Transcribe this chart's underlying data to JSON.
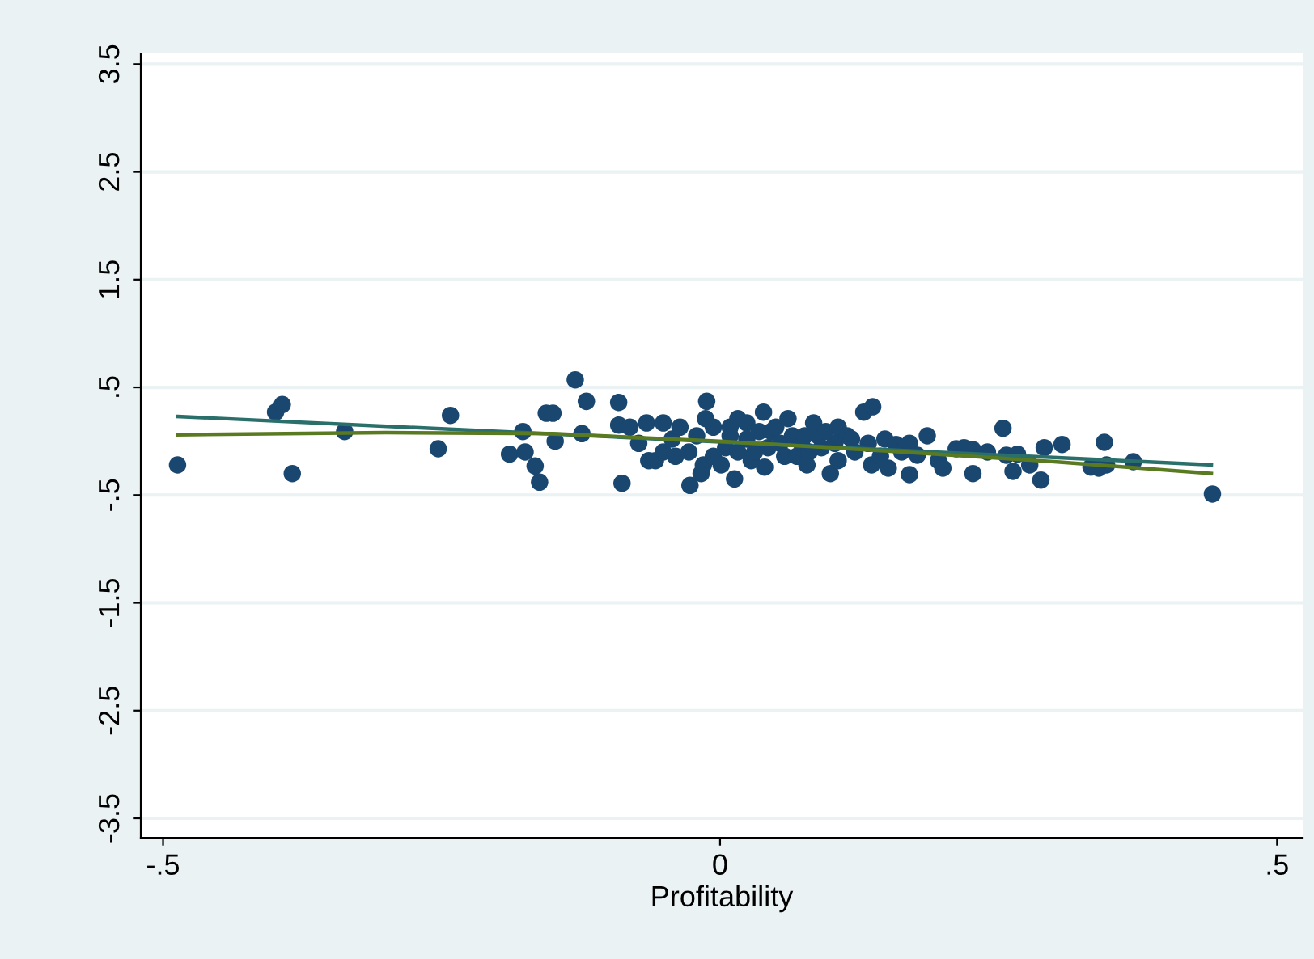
{
  "chart_data": {
    "type": "scatter",
    "xlabel": "Profitability",
    "xlim": [
      -0.52,
      0.523
    ],
    "ylim": [
      -3.68,
      3.6
    ],
    "xticks": [
      {
        "value": -0.5,
        "label": "-.5"
      },
      0,
      {
        "value": 0.5,
        "label": ".5"
      }
    ],
    "yticks": [
      {
        "value": -3.5,
        "label": "-3.5"
      },
      {
        "value": -2.5,
        "label": "-2.5"
      },
      {
        "value": -1.5,
        "label": "-1.5"
      },
      {
        "value": -0.5,
        "label": "-.5"
      },
      {
        "value": 0.5,
        "label": ".5"
      },
      1.5,
      2.5,
      3.5
    ],
    "grid": "y",
    "series": [
      {
        "marker": "circle",
        "color": "#1a476f",
        "x": [
          -0.487,
          -0.399,
          -0.393,
          -0.384,
          -0.337,
          -0.253,
          -0.242,
          -0.189,
          -0.177,
          -0.175,
          -0.166,
          -0.162,
          -0.156,
          -0.15,
          -0.148,
          -0.13,
          -0.124,
          -0.12,
          -0.091,
          -0.091,
          -0.088,
          -0.081,
          -0.073,
          -0.066,
          -0.064,
          -0.058,
          -0.051,
          -0.051,
          -0.043,
          -0.04,
          -0.036,
          -0.028,
          -0.027,
          -0.021,
          -0.017,
          -0.015,
          -0.013,
          -0.012,
          -0.006,
          -0.006,
          0.001,
          0.005,
          0.009,
          0.009,
          0.013,
          0.016,
          0.016,
          0.024,
          0.024,
          0.028,
          0.031,
          0.035,
          0.039,
          0.04,
          0.043,
          0.046,
          0.05,
          0.054,
          0.058,
          0.061,
          0.065,
          0.069,
          0.073,
          0.076,
          0.078,
          0.08,
          0.084,
          0.088,
          0.091,
          0.095,
          0.099,
          0.103,
          0.106,
          0.106,
          0.114,
          0.118,
          0.121,
          0.129,
          0.133,
          0.136,
          0.137,
          0.144,
          0.148,
          0.151,
          0.158,
          0.163,
          0.17,
          0.17,
          0.177,
          0.186,
          0.196,
          0.2,
          0.212,
          0.219,
          0.227,
          0.227,
          0.24,
          0.254,
          0.257,
          0.263,
          0.267,
          0.278,
          0.288,
          0.291,
          0.307,
          0.333,
          0.34,
          0.345,
          0.347,
          0.371,
          0.442
        ],
        "values": [
          -0.22,
          0.27,
          0.34,
          -0.3,
          0.09,
          -0.07,
          0.24,
          -0.12,
          0.09,
          -0.1,
          -0.23,
          -0.38,
          0.26,
          0.26,
          0.0,
          0.57,
          0.07,
          0.37,
          0.36,
          0.15,
          -0.39,
          0.13,
          -0.02,
          0.17,
          -0.18,
          -0.18,
          0.17,
          -0.1,
          0.02,
          -0.14,
          0.13,
          -0.1,
          -0.41,
          0.05,
          -0.3,
          -0.22,
          0.21,
          0.37,
          0.13,
          -0.14,
          -0.22,
          -0.06,
          0.05,
          0.13,
          -0.35,
          0.21,
          -0.1,
          0.02,
          0.17,
          -0.18,
          -0.1,
          0.09,
          0.27,
          -0.24,
          -0.06,
          0.09,
          0.13,
          -0.02,
          -0.14,
          0.21,
          0.05,
          -0.14,
          -0.02,
          0.05,
          -0.22,
          -0.1,
          0.17,
          0.05,
          -0.06,
          0.09,
          -0.3,
          -0.02,
          -0.18,
          0.13,
          0.05,
          0.02,
          -0.1,
          0.27,
          -0.02,
          -0.22,
          0.32,
          -0.14,
          0.02,
          -0.25,
          -0.03,
          -0.1,
          -0.31,
          -0.02,
          -0.13,
          0.05,
          -0.18,
          -0.25,
          -0.07,
          -0.06,
          -0.08,
          -0.3,
          -0.1,
          0.12,
          -0.13,
          -0.28,
          -0.12,
          -0.22,
          -0.36,
          -0.06,
          -0.03,
          -0.24,
          -0.25,
          -0.01,
          -0.22,
          -0.19,
          -0.49
        ]
      },
      {
        "type": "line",
        "color": "#2a6f6a",
        "x": [
          -0.487,
          0.441
        ],
        "values": [
          0.23,
          -0.22
        ]
      },
      {
        "type": "line",
        "color": "#5a7a22",
        "x": [
          -0.487,
          -0.3,
          -0.15,
          0,
          0.15,
          0.3,
          0.441
        ],
        "values": [
          0.06,
          0.08,
          0.07,
          0.0,
          -0.09,
          -0.19,
          -0.3
        ]
      }
    ]
  }
}
